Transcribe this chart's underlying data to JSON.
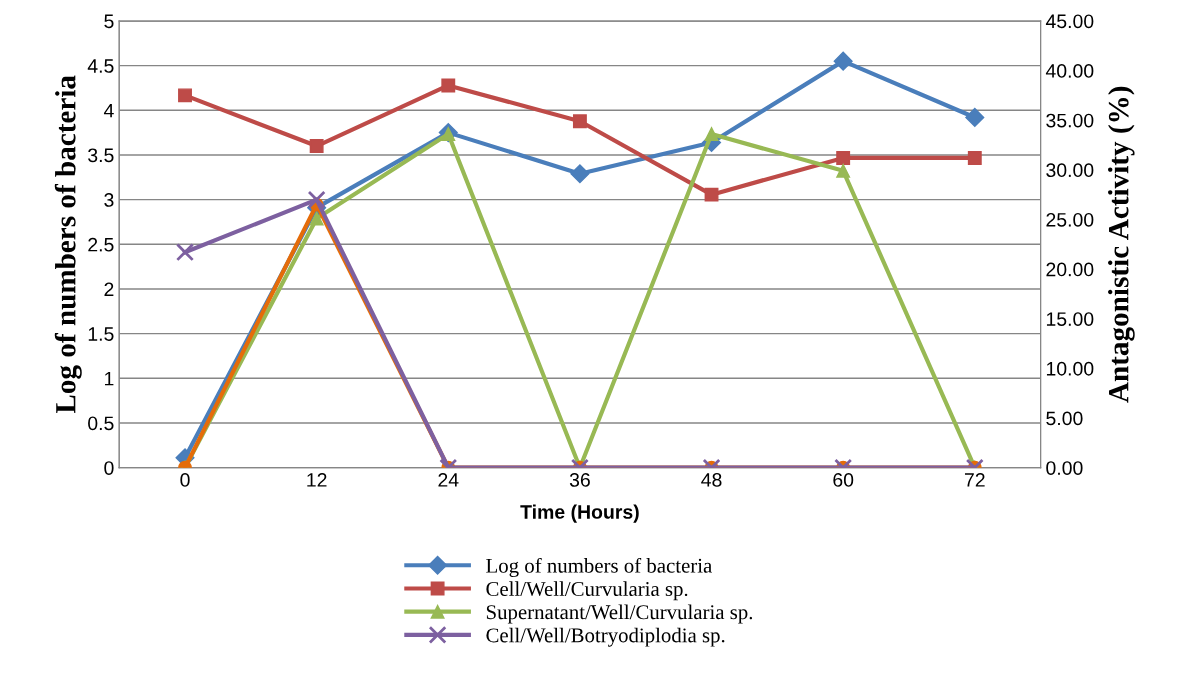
{
  "chart_data": {
    "type": "line",
    "xlabel": "Time (Hours)",
    "ylabel": "Log of numbers of bacteria",
    "y2label": "Antagonistic Activity (%)",
    "categories": [
      "0",
      "12",
      "24",
      "36",
      "48",
      "60",
      "72"
    ],
    "series": [
      {
        "name": "Log of numbers of bacteria",
        "color": "#4a7ebb",
        "marker": "diamond",
        "values": [
          0.11,
          2.91,
          3.75,
          3.29,
          3.64,
          4.55,
          3.92
        ]
      },
      {
        "name": "Cell/Well/Curvularia sp.",
        "color": "#be4b48",
        "marker": "square",
        "axis": "y2",
        "values": [
          37.5,
          32.4,
          38.5,
          34.9,
          27.5,
          31.2,
          31.2
        ]
      },
      {
        "name": "Supernatant/Well/Curvularia sp.",
        "color": "#98b954",
        "marker": "triangle",
        "axis": "y2",
        "values": [
          0,
          25.1,
          33.6,
          0,
          33.6,
          29.9,
          0
        ]
      },
      {
        "name": "Cell/Well/Botryodiplodia sp.",
        "color": "#7d60a0",
        "marker": "cross",
        "axis": "y2",
        "values": [
          21.7,
          27.0,
          0,
          0,
          0,
          0,
          0
        ]
      },
      {
        "color": "#e46c0a",
        "marker": "circle",
        "axis": "y2",
        "values": [
          0,
          26.5,
          0,
          0,
          0,
          0,
          0
        ]
      }
    ],
    "ylim": [
      0,
      5
    ],
    "yticks": [
      0,
      0.5,
      1,
      1.5,
      2,
      2.5,
      3,
      3.5,
      4,
      4.5,
      5
    ],
    "y2lim": [
      0,
      45
    ],
    "y2ticks": [
      {
        "value": 0,
        "label": "0.00"
      },
      {
        "value": 5,
        "label": "5.00"
      },
      {
        "value": 10,
        "label": "10.00"
      },
      {
        "value": 15,
        "label": "15.00"
      },
      {
        "value": 20,
        "label": "20.00"
      },
      {
        "value": 25,
        "label": "25.00"
      },
      {
        "value": 30,
        "label": "30.00"
      },
      {
        "value": 35,
        "label": "35.00"
      },
      {
        "value": 40,
        "label": "40.00"
      },
      {
        "value": 45,
        "label": "45.00"
      }
    ],
    "grid": "y",
    "legend": "bottom",
    "line_style": "solid"
  }
}
